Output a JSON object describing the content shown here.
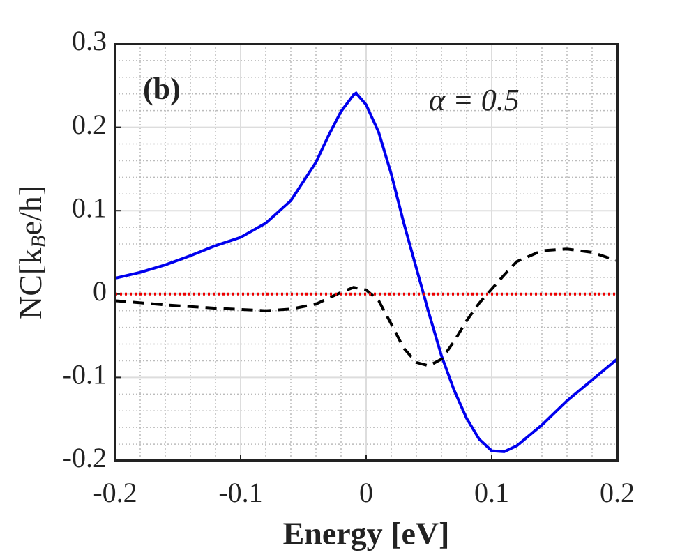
{
  "chart_data": {
    "type": "line",
    "xlabel": "Energy [eV]",
    "ylabel": {
      "main": "NC[k",
      "sub": "B",
      "rest": "e/h]"
    },
    "annotations": [
      "(b)",
      "α = 0.5"
    ],
    "xlim": [
      -0.2,
      0.2
    ],
    "ylim": [
      -0.2,
      0.3
    ],
    "xticks": [
      -0.2,
      -0.1,
      0,
      0.1,
      0.2
    ],
    "yticks": [
      -0.2,
      -0.1,
      0,
      0.1,
      0.2,
      0.3
    ],
    "xminor": [
      -0.18,
      -0.16,
      -0.14,
      -0.12,
      -0.08,
      -0.06,
      -0.04,
      -0.02,
      0.02,
      0.04,
      0.06,
      0.08,
      0.12,
      0.14,
      0.16,
      0.18
    ],
    "yminor": [
      -0.18,
      -0.16,
      -0.14,
      -0.12,
      -0.08,
      -0.06,
      -0.04,
      -0.02,
      0.02,
      0.04,
      0.06,
      0.08,
      0.12,
      0.14,
      0.16,
      0.18,
      0.22,
      0.24,
      0.26,
      0.28
    ],
    "grid": true,
    "series": [
      {
        "color": "#0000ee",
        "dash": "solid",
        "x": [
          -0.2,
          -0.18,
          -0.16,
          -0.14,
          -0.12,
          -0.1,
          -0.08,
          -0.06,
          -0.04,
          -0.03,
          -0.02,
          -0.01,
          -0.008,
          0,
          0.01,
          0.02,
          0.03,
          0.04,
          0.05,
          0.06,
          0.07,
          0.08,
          0.09,
          0.1,
          0.11,
          0.12,
          0.14,
          0.16,
          0.18,
          0.2
        ],
        "values": [
          0.019,
          0.026,
          0.035,
          0.046,
          0.058,
          0.068,
          0.085,
          0.112,
          0.158,
          0.19,
          0.219,
          0.239,
          0.241,
          0.227,
          0.194,
          0.144,
          0.085,
          0.031,
          -0.023,
          -0.074,
          -0.115,
          -0.149,
          -0.174,
          -0.188,
          -0.189,
          -0.182,
          -0.157,
          -0.128,
          -0.103,
          -0.078
        ]
      },
      {
        "color": "#000000",
        "dash": "dashed",
        "x": [
          -0.2,
          -0.16,
          -0.12,
          -0.08,
          -0.06,
          -0.04,
          -0.02,
          -0.01,
          0,
          0.01,
          0.02,
          0.03,
          0.04,
          0.05,
          0.06,
          0.07,
          0.08,
          0.09,
          0.1,
          0.11,
          0.12,
          0.14,
          0.16,
          0.18,
          0.2
        ],
        "values": [
          -0.008,
          -0.013,
          -0.017,
          -0.02,
          -0.018,
          -0.012,
          0.002,
          0.008,
          0.005,
          -0.008,
          -0.036,
          -0.065,
          -0.082,
          -0.086,
          -0.078,
          -0.057,
          -0.032,
          -0.011,
          0.006,
          0.023,
          0.039,
          0.052,
          0.054,
          0.05,
          0.04
        ]
      },
      {
        "color": "#ee0000",
        "dash": "dotted",
        "x": [
          -0.2,
          0.2
        ],
        "values": [
          0,
          0
        ]
      }
    ]
  }
}
